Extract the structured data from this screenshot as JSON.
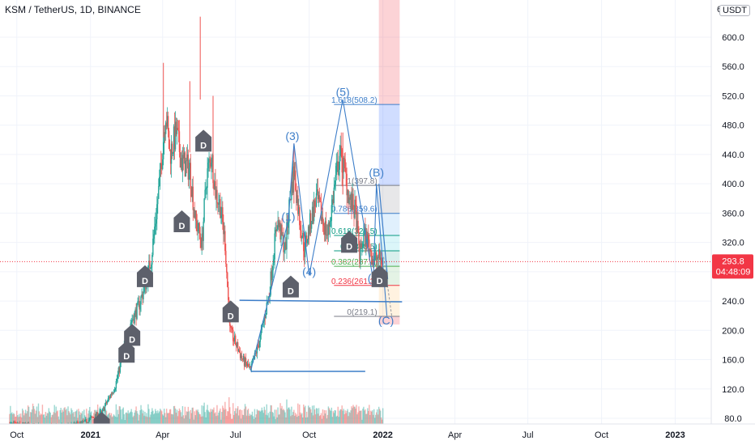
{
  "header": {
    "title": "KSM / TetherUS, 1D, BINANCE",
    "unit_badge": "USDT"
  },
  "price_label": {
    "price": "293.8",
    "countdown": "04:48:09",
    "color": "#f23645"
  },
  "colors": {
    "up": "#26a69a",
    "down": "#ef5350",
    "wave": "#3d7ec9",
    "marker": "#5d606b"
  },
  "chart_data": {
    "type": "candlestick",
    "title": "KSM / TetherUS, 1D, BINANCE",
    "y_ticks": [
      "80.0",
      "120.0",
      "160.0",
      "200.0",
      "240.0",
      "280.0",
      "320.0",
      "360.0",
      "400.0",
      "440.0",
      "480.0",
      "520.0",
      "560.0",
      "600.0"
    ],
    "y_tick_values": [
      80,
      120,
      160,
      200,
      240,
      280,
      320,
      360,
      400,
      440,
      480,
      520,
      560,
      600
    ],
    "y_range": [
      66,
      633
    ],
    "x_ticks": [
      {
        "label": "Oct",
        "date": "2020-10-01"
      },
      {
        "label": "2021",
        "date": "2021-01-01"
      },
      {
        "label": "Apr",
        "date": "2021-04-01"
      },
      {
        "label": "Jul",
        "date": "2021-07-01"
      },
      {
        "label": "Oct",
        "date": "2021-10-01"
      },
      {
        "label": "2022",
        "date": "2022-01-01"
      },
      {
        "label": "Apr",
        "date": "2022-04-01"
      },
      {
        "label": "Jul",
        "date": "2022-07-01"
      },
      {
        "label": "Oct",
        "date": "2022-10-01"
      },
      {
        "label": "2023",
        "date": "2023-01-01"
      }
    ],
    "x_range": [
      "2020-09-10",
      "2023-02-15"
    ],
    "last_price": 293.8,
    "price_path": [
      [
        "2020-09-22",
        72
      ],
      [
        "2020-10-15",
        70
      ],
      [
        "2020-11-10",
        68
      ],
      [
        "2020-12-05",
        69
      ],
      [
        "2020-12-25",
        75
      ],
      [
        "2021-01-15",
        88
      ],
      [
        "2021-02-01",
        125
      ],
      [
        "2021-02-12",
        175
      ],
      [
        "2021-02-20",
        210
      ],
      [
        "2021-03-01",
        230
      ],
      [
        "2021-03-10",
        260
      ],
      [
        "2021-03-18",
        300
      ],
      [
        "2021-03-28",
        400
      ],
      [
        "2021-04-05",
        500
      ],
      [
        "2021-04-10",
        440
      ],
      [
        "2021-04-18",
        470
      ],
      [
        "2021-04-25",
        430
      ],
      [
        "2021-05-05",
        420
      ],
      [
        "2021-05-12",
        350
      ],
      [
        "2021-05-20",
        320
      ],
      [
        "2021-05-26",
        410
      ],
      [
        "2021-06-01",
        440
      ],
      [
        "2021-06-06",
        390
      ],
      [
        "2021-06-12",
        370
      ],
      [
        "2021-06-18",
        320
      ],
      [
        "2021-06-24",
        200
      ],
      [
        "2021-07-02",
        180
      ],
      [
        "2021-07-10",
        160
      ],
      [
        "2021-07-20",
        145
      ],
      [
        "2021-08-01",
        190
      ],
      [
        "2021-08-12",
        250
      ],
      [
        "2021-08-22",
        350
      ],
      [
        "2021-09-01",
        310
      ],
      [
        "2021-09-07",
        380
      ],
      [
        "2021-09-12",
        420
      ],
      [
        "2021-09-18",
        360
      ],
      [
        "2021-09-25",
        310
      ],
      [
        "2021-10-03",
        350
      ],
      [
        "2021-10-10",
        380
      ],
      [
        "2021-10-18",
        350
      ],
      [
        "2021-10-24",
        330
      ],
      [
        "2021-11-01",
        390
      ],
      [
        "2021-11-08",
        440
      ],
      [
        "2021-11-14",
        420
      ],
      [
        "2021-11-20",
        380
      ],
      [
        "2021-11-28",
        360
      ],
      [
        "2021-12-03",
        300
      ],
      [
        "2021-12-08",
        330
      ],
      [
        "2021-12-14",
        320
      ],
      [
        "2021-12-20",
        295
      ],
      [
        "2021-12-26",
        300
      ],
      [
        "2022-01-01",
        293.8
      ]
    ],
    "highs": [
      [
        "2021-04-02",
        565
      ],
      [
        "2021-05-05",
        540
      ],
      [
        "2021-05-18",
        628
      ],
      [
        "2021-06-03",
        520
      ],
      [
        "2021-09-12",
        455
      ],
      [
        "2021-11-12",
        470
      ]
    ],
    "volume_note": "volume bars at bottom",
    "waves": [
      {
        "label": "(1)",
        "date": "2021-09-05",
        "price": 350
      },
      {
        "label": "(3)",
        "date": "2021-09-10",
        "price": 460
      },
      {
        "label": "(4)",
        "date": "2021-10-01",
        "price": 275
      },
      {
        "label": "(5)",
        "date": "2021-11-12",
        "price": 520
      },
      {
        "label": "(A",
        "date": "2021-12-20",
        "price": 266
      },
      {
        "label": "(B)",
        "date": "2021-12-24",
        "price": 410
      },
      {
        "label": "(C)",
        "date": "2022-01-05",
        "price": 208
      }
    ],
    "fib_levels": [
      {
        "label": "1.618(508.2)",
        "price": 508.2,
        "color": "#3d7ec9"
      },
      {
        "label": "1(397.8)",
        "price": 397.8,
        "color": "#787b86"
      },
      {
        "label": "0.786(359.6)",
        "price": 359.6,
        "color": "#3d7ec9"
      },
      {
        "label": "0.618(329.5)",
        "price": 329.5,
        "color": "#089981"
      },
      {
        "label": "0.5(308.5)",
        "price": 308.5,
        "color": "#089981"
      },
      {
        "label": "0.382(287.4)",
        "price": 287.4,
        "color": "#4caf50"
      },
      {
        "label": "0.236(261.3)",
        "price": 261.3,
        "color": "#f23645"
      },
      {
        "label": "0(219.1)",
        "price": 219.1,
        "color": "#787b86"
      }
    ],
    "dividend_markers": [
      {
        "label": "D",
        "date": "2021-01-15",
        "price": 70
      },
      {
        "label": "D",
        "date": "2021-02-15",
        "price": 167
      },
      {
        "label": "D",
        "date": "2021-02-22",
        "price": 190
      },
      {
        "label": "D",
        "date": "2021-03-10",
        "price": 270
      },
      {
        "label": "D",
        "date": "2021-04-25",
        "price": 345
      },
      {
        "label": "D",
        "date": "2021-05-22",
        "price": 455
      },
      {
        "label": "D",
        "date": "2021-06-25",
        "price": 222
      },
      {
        "label": "D",
        "date": "2021-09-08",
        "price": 256
      },
      {
        "label": "D",
        "date": "2021-11-20",
        "price": 317
      },
      {
        "label": "D",
        "date": "2021-12-28",
        "price": 270
      }
    ]
  }
}
